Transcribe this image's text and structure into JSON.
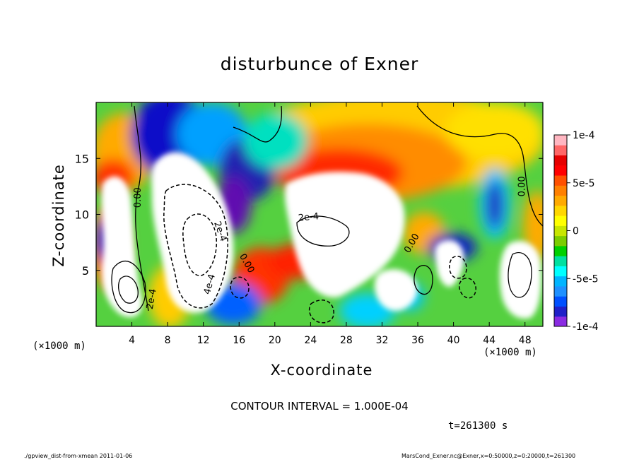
{
  "chart_data": {
    "type": "heatmap",
    "title": "disturbunce of Exner",
    "xlabel": "X-coordinate",
    "ylabel": "Z-coordinate",
    "x_unit": "(×1000 m)",
    "y_unit": "(×1000 m)",
    "xlim": [
      0,
      50
    ],
    "ylim": [
      0,
      20
    ],
    "x_ticks": [
      4,
      8,
      12,
      16,
      20,
      24,
      28,
      32,
      36,
      40,
      44,
      48
    ],
    "y_ticks": [
      5,
      10,
      15
    ],
    "colorbar": {
      "range": [
        -0.0001,
        0.0001
      ],
      "tick_values": [
        0.0001,
        5e-05,
        0,
        -5e-05,
        -0.0001
      ],
      "tick_labels": [
        "1e-4",
        "5e-5",
        "0",
        "-5e-5",
        "-1e-4"
      ],
      "colors": [
        "#8a2be2",
        "#2020c8",
        "#0050ff",
        "#1e90ff",
        "#00b4ff",
        "#00ffff",
        "#00e0a0",
        "#00d000",
        "#7ccd00",
        "#c8e600",
        "#ffff00",
        "#ffd700",
        "#ffaa00",
        "#ff8000",
        "#ff5000",
        "#ff0000",
        "#e60000",
        "#ff6666",
        "#ffb6c1"
      ]
    },
    "contour_labels": [
      {
        "text": "0.00",
        "x": 5,
        "z": 11.5,
        "angle": -90
      },
      {
        "text": "0.00",
        "x": 48,
        "z": 12.5,
        "angle": -90
      },
      {
        "text": "2e-4",
        "x": 23.8,
        "z": 9.5,
        "angle": -5
      },
      {
        "text": "2e-4",
        "x": 6.5,
        "z": 2.4,
        "angle": -80
      },
      {
        "text": "2e-4",
        "x": 13.6,
        "z": 8.4,
        "angle": 70
      },
      {
        "text": "4e-4",
        "x": 13.0,
        "z": 3.7,
        "angle": -75
      },
      {
        "text": "0.00",
        "x": 16.6,
        "z": 5.5,
        "angle": 60
      },
      {
        "text": "0.00",
        "x": 35.6,
        "z": 7.3,
        "angle": -60
      }
    ],
    "contour_interval": "CONTOUR INTERVAL = 1.000E-04",
    "time": "t=261300 s"
  },
  "footer": {
    "left": "./gpview_dist-from-xmean  2011-01-06",
    "right": "MarsCond_Exner.nc@Exner,x=0:50000,z=0:20000,t=261300"
  }
}
